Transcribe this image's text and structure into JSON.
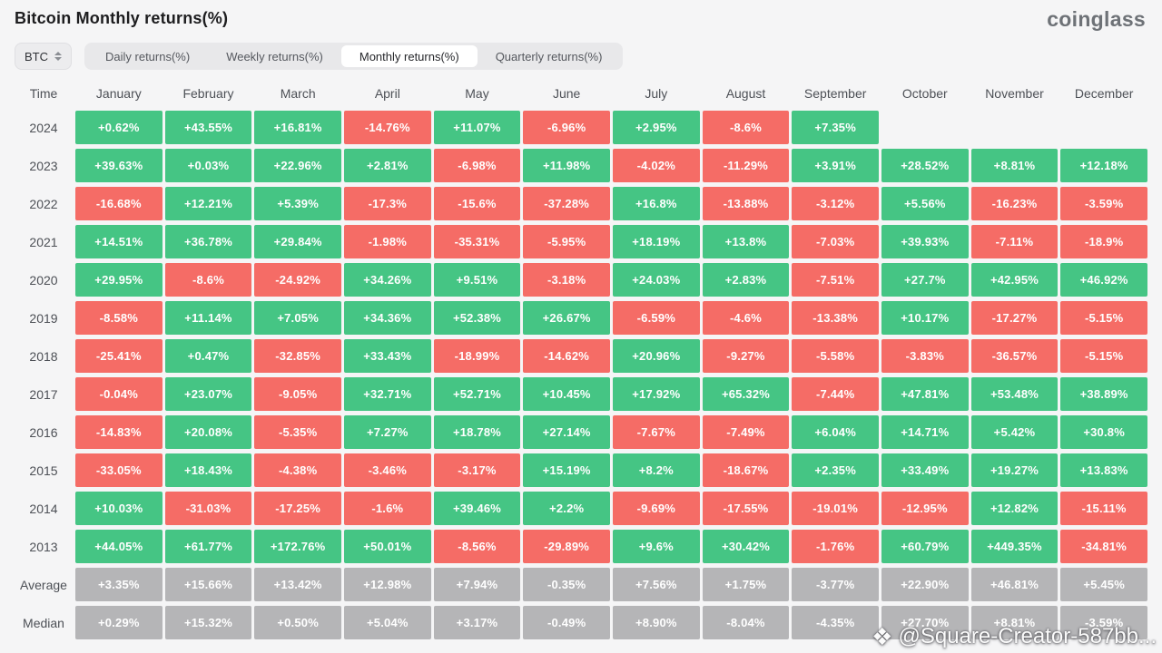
{
  "header": {
    "title": "Bitcoin Monthly returns(%)",
    "brand": "coinglass"
  },
  "toolbar": {
    "coin": "BTC",
    "tabs": [
      {
        "label": "Daily returns(%)",
        "active": false
      },
      {
        "label": "Weekly returns(%)",
        "active": false
      },
      {
        "label": "Monthly returns(%)",
        "active": true
      },
      {
        "label": "Quarterly returns(%)",
        "active": false
      }
    ]
  },
  "colors": {
    "positive": "#45c584",
    "negative": "#f56c66",
    "summary": "#b5b5b7"
  },
  "table": {
    "corner_label": "Time",
    "months": [
      "January",
      "February",
      "March",
      "April",
      "May",
      "June",
      "July",
      "August",
      "September",
      "October",
      "November",
      "December"
    ],
    "rows": [
      {
        "label": "2024",
        "type": "year",
        "values": [
          "+0.62%",
          "+43.55%",
          "+16.81%",
          "-14.76%",
          "+11.07%",
          "-6.96%",
          "+2.95%",
          "-8.6%",
          "+7.35%",
          "",
          "",
          ""
        ]
      },
      {
        "label": "2023",
        "type": "year",
        "values": [
          "+39.63%",
          "+0.03%",
          "+22.96%",
          "+2.81%",
          "-6.98%",
          "+11.98%",
          "-4.02%",
          "-11.29%",
          "+3.91%",
          "+28.52%",
          "+8.81%",
          "+12.18%"
        ]
      },
      {
        "label": "2022",
        "type": "year",
        "values": [
          "-16.68%",
          "+12.21%",
          "+5.39%",
          "-17.3%",
          "-15.6%",
          "-37.28%",
          "+16.8%",
          "-13.88%",
          "-3.12%",
          "+5.56%",
          "-16.23%",
          "-3.59%"
        ]
      },
      {
        "label": "2021",
        "type": "year",
        "values": [
          "+14.51%",
          "+36.78%",
          "+29.84%",
          "-1.98%",
          "-35.31%",
          "-5.95%",
          "+18.19%",
          "+13.8%",
          "-7.03%",
          "+39.93%",
          "-7.11%",
          "-18.9%"
        ]
      },
      {
        "label": "2020",
        "type": "year",
        "values": [
          "+29.95%",
          "-8.6%",
          "-24.92%",
          "+34.26%",
          "+9.51%",
          "-3.18%",
          "+24.03%",
          "+2.83%",
          "-7.51%",
          "+27.7%",
          "+42.95%",
          "+46.92%"
        ]
      },
      {
        "label": "2019",
        "type": "year",
        "values": [
          "-8.58%",
          "+11.14%",
          "+7.05%",
          "+34.36%",
          "+52.38%",
          "+26.67%",
          "-6.59%",
          "-4.6%",
          "-13.38%",
          "+10.17%",
          "-17.27%",
          "-5.15%"
        ]
      },
      {
        "label": "2018",
        "type": "year",
        "values": [
          "-25.41%",
          "+0.47%",
          "-32.85%",
          "+33.43%",
          "-18.99%",
          "-14.62%",
          "+20.96%",
          "-9.27%",
          "-5.58%",
          "-3.83%",
          "-36.57%",
          "-5.15%"
        ]
      },
      {
        "label": "2017",
        "type": "year",
        "values": [
          "-0.04%",
          "+23.07%",
          "-9.05%",
          "+32.71%",
          "+52.71%",
          "+10.45%",
          "+17.92%",
          "+65.32%",
          "-7.44%",
          "+47.81%",
          "+53.48%",
          "+38.89%"
        ]
      },
      {
        "label": "2016",
        "type": "year",
        "values": [
          "-14.83%",
          "+20.08%",
          "-5.35%",
          "+7.27%",
          "+18.78%",
          "+27.14%",
          "-7.67%",
          "-7.49%",
          "+6.04%",
          "+14.71%",
          "+5.42%",
          "+30.8%"
        ]
      },
      {
        "label": "2015",
        "type": "year",
        "values": [
          "-33.05%",
          "+18.43%",
          "-4.38%",
          "-3.46%",
          "-3.17%",
          "+15.19%",
          "+8.2%",
          "-18.67%",
          "+2.35%",
          "+33.49%",
          "+19.27%",
          "+13.83%"
        ]
      },
      {
        "label": "2014",
        "type": "year",
        "values": [
          "+10.03%",
          "-31.03%",
          "-17.25%",
          "-1.6%",
          "+39.46%",
          "+2.2%",
          "-9.69%",
          "-17.55%",
          "-19.01%",
          "-12.95%",
          "+12.82%",
          "-15.11%"
        ]
      },
      {
        "label": "2013",
        "type": "year",
        "values": [
          "+44.05%",
          "+61.77%",
          "+172.76%",
          "+50.01%",
          "-8.56%",
          "-29.89%",
          "+9.6%",
          "+30.42%",
          "-1.76%",
          "+60.79%",
          "+449.35%",
          "-34.81%"
        ]
      },
      {
        "label": "Average",
        "type": "summary",
        "values": [
          "+3.35%",
          "+15.66%",
          "+13.42%",
          "+12.98%",
          "+7.94%",
          "-0.35%",
          "+7.56%",
          "+1.75%",
          "-3.77%",
          "+22.90%",
          "+46.81%",
          "+5.45%"
        ]
      },
      {
        "label": "Median",
        "type": "summary",
        "values": [
          "+0.29%",
          "+15.32%",
          "+0.50%",
          "+5.04%",
          "+3.17%",
          "-0.49%",
          "+8.90%",
          "-8.04%",
          "-4.35%",
          "+27.70%",
          "+8.81%",
          "-3.59%"
        ]
      }
    ]
  },
  "watermark": {
    "icon": "binance-diamond-icon",
    "text": "@Square-Creator-587bb..."
  }
}
